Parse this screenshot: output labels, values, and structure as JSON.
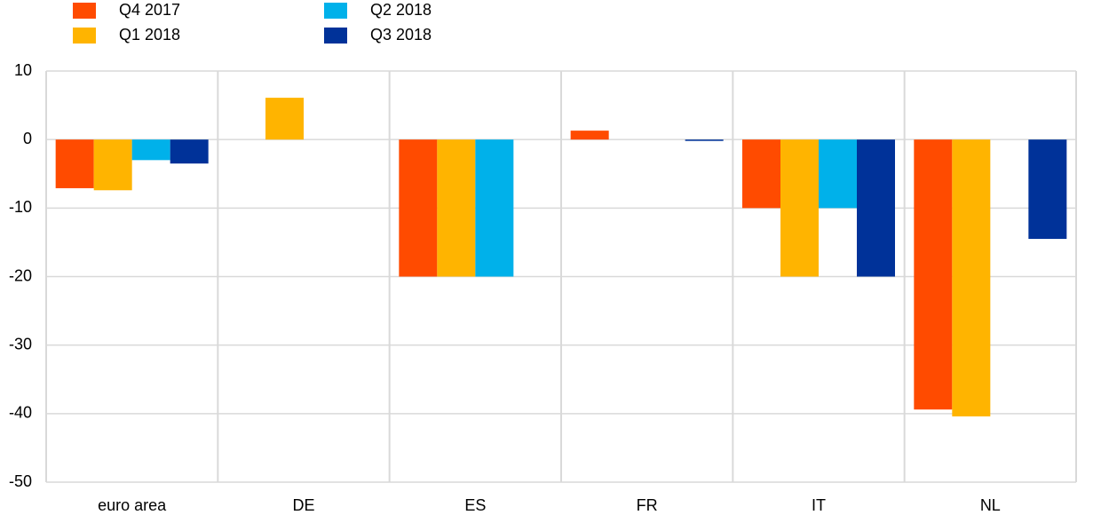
{
  "chart_data": {
    "type": "bar",
    "categories": [
      "euro area",
      "DE",
      "ES",
      "FR",
      "IT",
      "NL"
    ],
    "series": [
      {
        "name": "Q4 2017",
        "color": "#ff4b00",
        "values": [
          -7.1,
          0,
          -20,
          1.3,
          -10,
          -39.4
        ]
      },
      {
        "name": "Q1 2018",
        "color": "#ffb400",
        "values": [
          -7.4,
          6.1,
          -20,
          0,
          -20,
          -40.4
        ]
      },
      {
        "name": "Q2 2018",
        "color": "#00b1ea",
        "values": [
          -3.0,
          0,
          -20,
          0,
          -10,
          0
        ]
      },
      {
        "name": "Q3 2018",
        "color": "#003299",
        "values": [
          -3.5,
          0,
          0,
          -0.2,
          -20,
          -14.5
        ]
      }
    ],
    "ylim": [
      -50,
      10
    ],
    "yticks": [
      10,
      0,
      -10,
      -20,
      -30,
      -40,
      -50
    ],
    "grid": true
  }
}
